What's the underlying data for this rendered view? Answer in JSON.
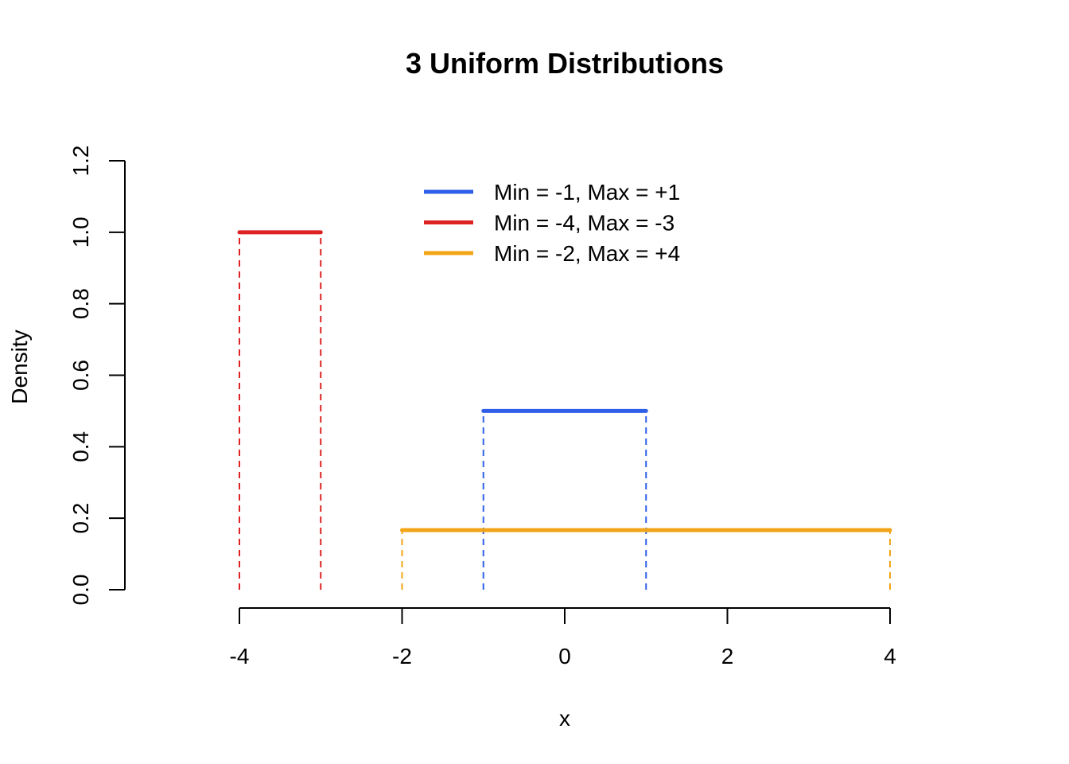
{
  "chart_data": {
    "type": "line",
    "title": "3 Uniform Distributions",
    "xlabel": "x",
    "ylabel": "Density",
    "xlim": [
      -4,
      4
    ],
    "ylim": [
      0,
      1.2
    ],
    "x_ticks": [
      -4,
      -2,
      0,
      2,
      4
    ],
    "x_tick_labels": [
      "-4",
      "-2",
      "0",
      "2",
      "4"
    ],
    "y_ticks": [
      0,
      0.2,
      0.4,
      0.6,
      0.8,
      1.0,
      1.2
    ],
    "y_tick_labels": [
      "0.0",
      "0.2",
      "0.4",
      "0.6",
      "0.8",
      "1.0",
      "1.2"
    ],
    "grid": false,
    "legend_position": "top-center",
    "series": [
      {
        "name": "Min = -1, Max = +1",
        "min": -1,
        "max": 1,
        "density": 0.5,
        "color": "#2f5fe8"
      },
      {
        "name": "Min = -4, Max = -3",
        "min": -4,
        "max": -3,
        "density": 1.0,
        "color": "#dc2222"
      },
      {
        "name": "Min = -2, Max = +4",
        "min": -2,
        "max": 4,
        "density": 0.1667,
        "color": "#f2a516"
      }
    ]
  }
}
